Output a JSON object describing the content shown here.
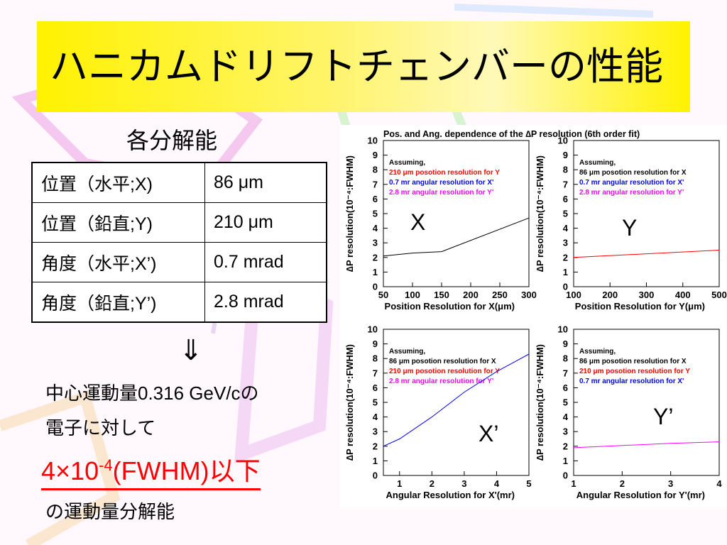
{
  "title": "ハニカムドリフトチェンバーの性能",
  "subhead": "各分解能",
  "table": [
    {
      "label": "位置（水平;X)",
      "value": "86 μm"
    },
    {
      "label": "位置（鉛直;Y)",
      "value": "210 μm"
    },
    {
      "label": "角度（水平;X’)",
      "value": "0.7 mrad"
    },
    {
      "label": "角度（鉛直;Y’)",
      "value": "2.8 mrad"
    }
  ],
  "arrow": "⇓",
  "text": {
    "line1": "中心運動量0.316 GeV/cの",
    "line2": "電子に対して",
    "big_main": "4×10",
    "big_exp": "-4",
    "big_tail": "(FWHM)以下",
    "line3": "の運動量分解能"
  },
  "colors": {
    "title_bar": "#fff200",
    "highlight": "#ff0000",
    "blue": "#0000ff",
    "magenta": "#ff00ff"
  },
  "figure_title": "Pos. and Ang. dependence of the ∆P resolution (6th order fit)",
  "chart_data": [
    {
      "type": "line",
      "label": "X",
      "xlabel": "Position Resolution for X(μm)",
      "ylabel": "∆P resolution(10⁻⁴:FWHM)",
      "xlim": [
        50,
        300
      ],
      "ylim": [
        0,
        10
      ],
      "xticks": [
        50,
        100,
        150,
        200,
        250,
        300
      ],
      "yticks": [
        0,
        1,
        2,
        3,
        4,
        5,
        6,
        7,
        8,
        9,
        10
      ],
      "legend": [
        "Assuming,",
        "210 μm posotion resolution for Y",
        "0.7 mr angular resolution for X'",
        "2.8 mr angular resolution for Y'"
      ],
      "legend_colors": [
        "#000000",
        "#ff0000",
        "#0000ff",
        "#ff00ff"
      ],
      "series": [
        {
          "color": "#000000",
          "x": [
            50,
            100,
            150,
            300
          ],
          "y": [
            2.1,
            2.3,
            2.4,
            4.7
          ]
        }
      ]
    },
    {
      "type": "line",
      "label": "Y",
      "xlabel": "Position Resolution for Y(μm)",
      "ylabel": "∆P resolution(10⁻⁴:FWHM)",
      "xlim": [
        100,
        500
      ],
      "ylim": [
        0,
        10
      ],
      "xticks": [
        100,
        200,
        300,
        400,
        500
      ],
      "yticks": [
        0,
        1,
        2,
        3,
        4,
        5,
        6,
        7,
        8,
        9,
        10
      ],
      "legend": [
        "Assuming,",
        "86 μm posotion resolution for X",
        "0.7 mr angular resolution for X'",
        "2.8 mr angular resolution for Y'"
      ],
      "legend_colors": [
        "#000000",
        "#000000",
        "#0000ff",
        "#ff00ff"
      ],
      "series": [
        {
          "color": "#ff0000",
          "x": [
            100,
            500
          ],
          "y": [
            2.0,
            2.5
          ]
        }
      ]
    },
    {
      "type": "line",
      "label": "X’",
      "xlabel": "Angular Resolution for X'(mr)",
      "ylabel": "∆P resolution(10⁻⁴:FWHM)",
      "xlim": [
        0.5,
        5
      ],
      "ylim": [
        0,
        10
      ],
      "xticks": [
        1,
        2,
        3,
        4,
        5
      ],
      "yticks": [
        0,
        1,
        2,
        3,
        4,
        5,
        6,
        7,
        8,
        9,
        10
      ],
      "legend": [
        "Assuming,",
        "86 μm posotion resolution for X",
        "210 μm posotion resolution for Y",
        "2.8 mr angular resolution for Y'"
      ],
      "legend_colors": [
        "#000000",
        "#000000",
        "#ff0000",
        "#ff00ff"
      ],
      "series": [
        {
          "color": "#0000ff",
          "x": [
            0.5,
            1,
            2,
            3,
            4,
            5
          ],
          "y": [
            2.0,
            2.5,
            4.0,
            5.7,
            7.1,
            8.3
          ]
        }
      ]
    },
    {
      "type": "line",
      "label": "Y’",
      "xlabel": "Angular Resolution for Y'(mr)",
      "ylabel": "∆P resolution(10⁻⁴:FWHM)",
      "xlim": [
        1,
        4
      ],
      "ylim": [
        0,
        10
      ],
      "xticks": [
        1,
        2,
        3,
        4
      ],
      "yticks": [
        0,
        1,
        2,
        3,
        4,
        5,
        6,
        7,
        8,
        9,
        10
      ],
      "legend": [
        "Assuming,",
        "86 μm posotion resolution for X",
        "210 μm posotion resolution for Y",
        "0.7 mr angular resolution for X'"
      ],
      "legend_colors": [
        "#000000",
        "#000000",
        "#ff0000",
        "#0000ff"
      ],
      "series": [
        {
          "color": "#ff00ff",
          "x": [
            1,
            2,
            3,
            4
          ],
          "y": [
            1.9,
            2.05,
            2.2,
            2.3
          ]
        }
      ]
    }
  ]
}
